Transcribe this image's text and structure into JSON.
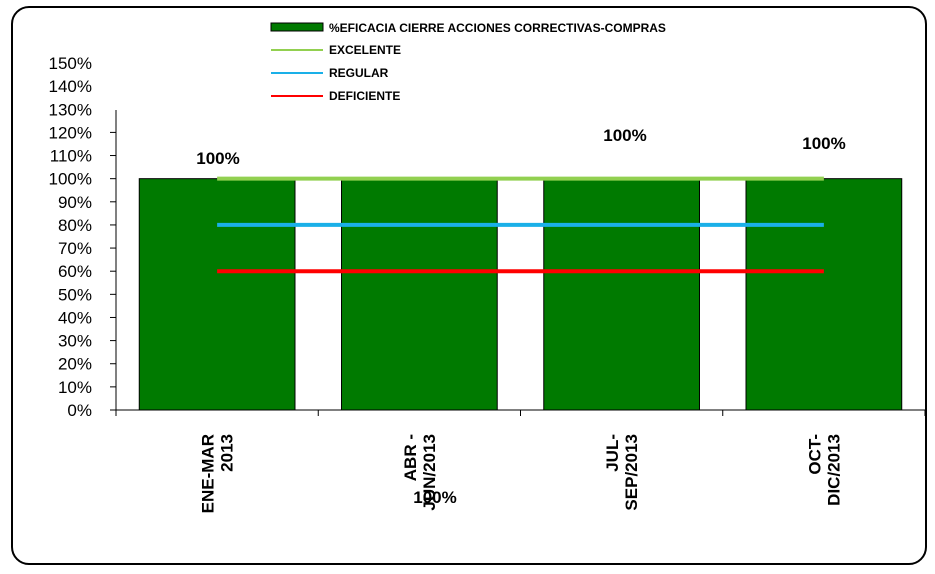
{
  "chart_data": {
    "type": "bar",
    "categories": [
      [
        "ENE-MAR",
        "2013"
      ],
      [
        "ABR -",
        "JUN/2013"
      ],
      [
        "JUL-",
        "SEP/2013"
      ],
      [
        "OCT-",
        "DIC/2013"
      ]
    ],
    "series": [
      {
        "name": "%EFICACIA CIERRE ACCIONES CORRECTIVAS-COMPRAS",
        "type": "bar",
        "color": "#007a00",
        "values": [
          1.0,
          1.0,
          1.0,
          1.0
        ]
      },
      {
        "name": "EXCELENTE",
        "type": "line",
        "color": "#92d050",
        "values": [
          1.0,
          1.0,
          1.0,
          1.0
        ]
      },
      {
        "name": "REGULAR",
        "type": "line",
        "color": "#1ab0e8",
        "values": [
          0.8,
          0.8,
          0.8,
          0.8
        ]
      },
      {
        "name": "DEFICIENTE",
        "type": "line",
        "color": "#ff0000",
        "values": [
          0.6,
          0.6,
          0.6,
          0.6
        ]
      }
    ],
    "data_labels": [
      "100%",
      "100%",
      "100%",
      "100%"
    ],
    "ylim": [
      0,
      1.5
    ],
    "yticks": [
      "0%",
      "10%",
      "20%",
      "30%",
      "40%",
      "50%",
      "60%",
      "70%",
      "80%",
      "90%",
      "100%",
      "110%",
      "120%",
      "130%",
      "140%",
      "150%"
    ],
    "legend_position": "top"
  }
}
